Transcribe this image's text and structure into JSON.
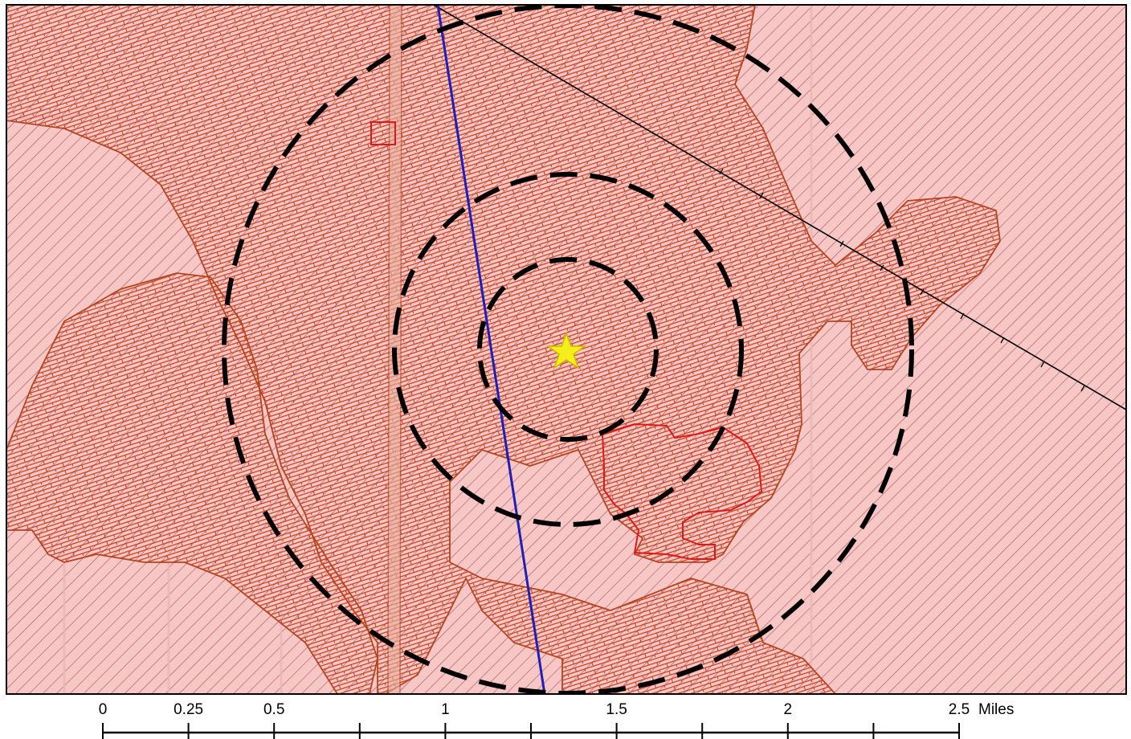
{
  "map": {
    "colors": {
      "base_fill": "#f6c7c5",
      "hatch_diagonal": "#9a3a52",
      "hatch_brick": "#c2401c",
      "zone_outline": "#b5441f",
      "parcel_outline": "#e01818",
      "pipeline": "#1f1fb5",
      "railroad": "#000000",
      "buffer_ring": "#000000",
      "site_marker": "#f5ee1a"
    },
    "site_marker_icon": "star-icon",
    "buffer_rings": [
      "inner",
      "middle",
      "outer"
    ]
  },
  "scale_bar": {
    "labels": [
      "0",
      "0.25",
      "0.5",
      "1",
      "1.5",
      "2",
      "2.5"
    ],
    "unit": "Miles"
  }
}
